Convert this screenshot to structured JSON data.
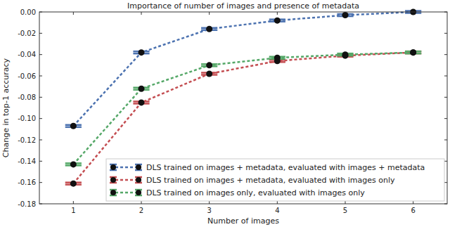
{
  "chart_data": {
    "type": "line",
    "title": "Importance of number of images and presence of metadata",
    "x_label": "Number of images",
    "y_label": "Change in top-1 accuracy",
    "x": [
      1,
      2,
      3,
      4,
      5,
      6
    ],
    "series": [
      {
        "name": "DLS trained on images + metadata, evaluated with images + metadata",
        "color": "#4c72b0",
        "values": [
          -0.107,
          -0.038,
          -0.016,
          -0.008,
          -0.003,
          0.0
        ],
        "errors": [
          0.001,
          0.001,
          0.001,
          0.001,
          0.001,
          0.001
        ]
      },
      {
        "name": "DLS trained on images + metadata, evaluated with images only",
        "color": "#c44e52",
        "values": [
          -0.161,
          -0.085,
          -0.058,
          -0.046,
          -0.041,
          -0.038
        ],
        "errors": [
          0.001,
          0.001,
          0.001,
          0.001,
          0.001,
          0.001
        ]
      },
      {
        "name": "DLS trained on images only, evaluated with images only",
        "color": "#55a868",
        "values": [
          -0.143,
          -0.072,
          -0.05,
          -0.043,
          -0.04,
          -0.038
        ],
        "errors": [
          0.001,
          0.001,
          0.001,
          0.001,
          0.001,
          0.001
        ]
      }
    ],
    "xlim": [
      0.5,
      6.5
    ],
    "xticks": [
      1,
      2,
      3,
      4,
      5,
      6
    ],
    "ylim": [
      -0.18,
      0.0
    ],
    "yticks": [
      -0.18,
      -0.16,
      -0.14,
      -0.12,
      {
        "value": -0.1,
        "label": "-0.10"
      },
      -0.08,
      -0.06,
      -0.04,
      -0.02,
      {
        "value": 0,
        "label": "0.00"
      }
    ],
    "grid": false,
    "legend": "lower right",
    "marker": "circle",
    "line_style": "dashed"
  }
}
